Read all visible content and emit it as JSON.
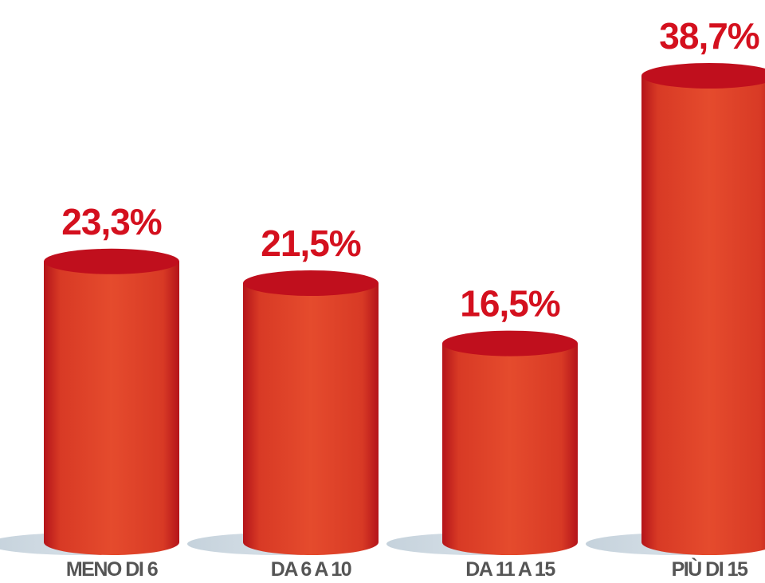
{
  "chart_data": {
    "type": "bar",
    "categories": [
      "MENO DI 6",
      "DA 6 A 10",
      "DA 11 A 15",
      "PIÙ DI 15"
    ],
    "values": [
      23.3,
      21.5,
      16.5,
      38.7
    ],
    "value_labels": [
      "23,3%",
      "21,5%",
      "16,5%",
      "38,7%"
    ],
    "color": "#e54b2d"
  }
}
